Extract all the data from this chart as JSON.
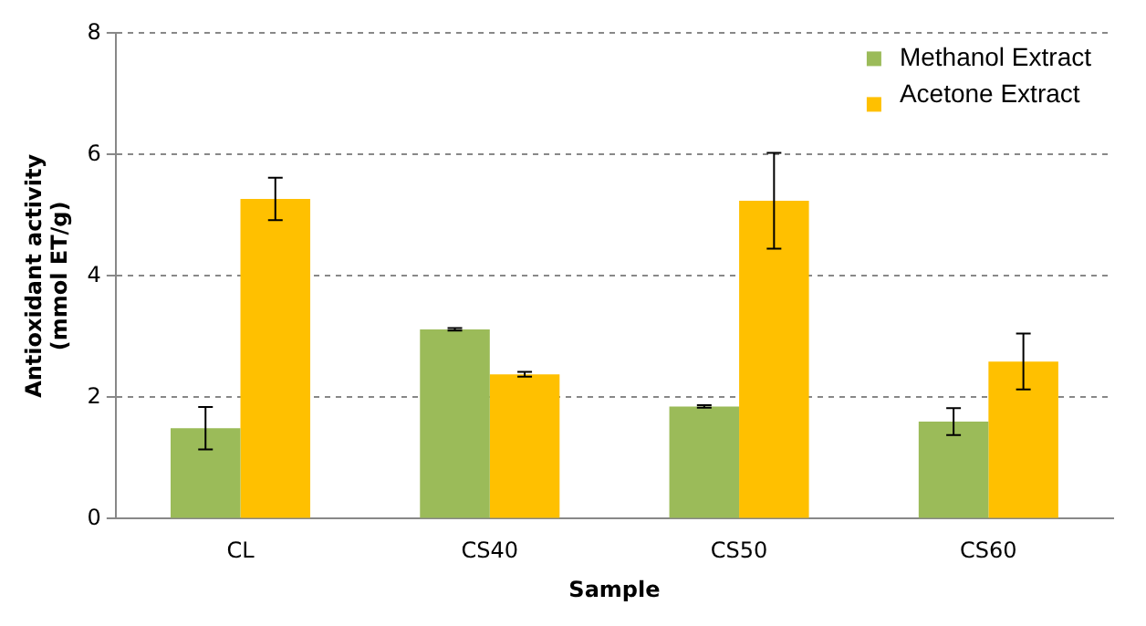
{
  "chart_data": {
    "type": "bar",
    "xlabel": "Sample",
    "ylabel": "Antioxidant activity\n(mmol ET/g)",
    "categories": [
      "CL",
      "CS40",
      "CS50",
      "CS60"
    ],
    "series": [
      {
        "name": "Methanol Extract",
        "color": "#9bbb59",
        "values": [
          1.49,
          3.12,
          1.85,
          1.6
        ],
        "errors": [
          0.35,
          0.02,
          0.02,
          0.22
        ]
      },
      {
        "name": "Acetone Extract",
        "color": "#ffc000",
        "values": [
          5.27,
          2.38,
          5.24,
          2.59
        ],
        "errors": [
          0.35,
          0.04,
          0.79,
          0.46
        ]
      }
    ],
    "ylim": [
      0,
      8
    ],
    "yticks": [
      0,
      2,
      4,
      6,
      8
    ],
    "grid": "y",
    "legend": "top right"
  }
}
